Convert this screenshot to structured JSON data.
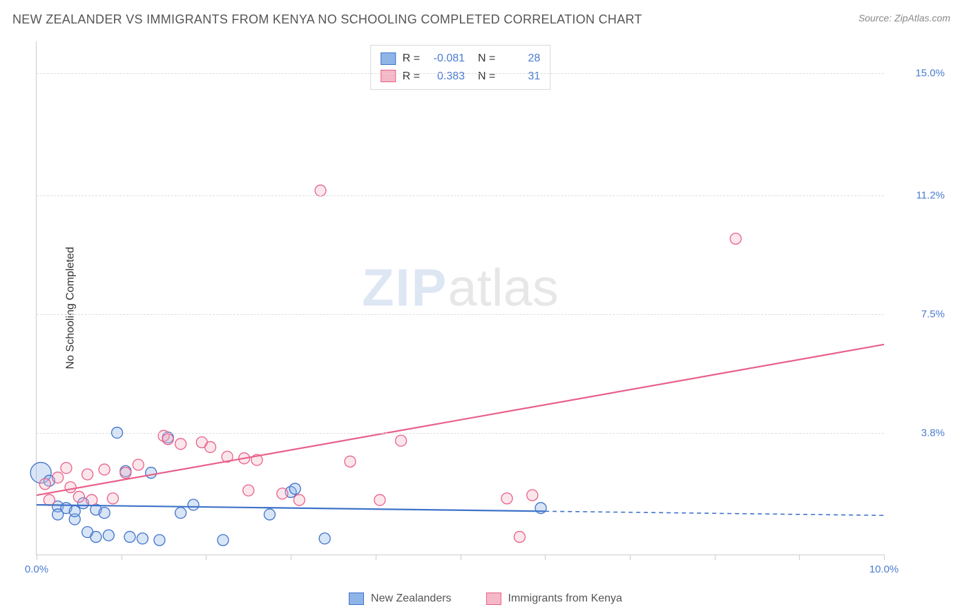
{
  "header": {
    "title": "NEW ZEALANDER VS IMMIGRANTS FROM KENYA NO SCHOOLING COMPLETED CORRELATION CHART",
    "source_prefix": "Source: ",
    "source_name": "ZipAtlas.com"
  },
  "watermark": {
    "left": "ZIP",
    "right": "atlas"
  },
  "chart": {
    "type": "scatter-correlation",
    "background_color": "#ffffff",
    "grid_color": "#dddddd",
    "axis_color": "#cccccc",
    "tick_label_color": "#4a7bd0",
    "yaxis_title": "No Schooling Completed",
    "xlim": [
      0,
      10
    ],
    "ylim": [
      0,
      16
    ],
    "yticks": [
      {
        "value": 3.8,
        "label": "3.8%"
      },
      {
        "value": 7.5,
        "label": "7.5%"
      },
      {
        "value": 11.2,
        "label": "11.2%"
      },
      {
        "value": 15.0,
        "label": "15.0%"
      }
    ],
    "xticks_minor": [
      0,
      1,
      2,
      3,
      4,
      5,
      6,
      7,
      8,
      9,
      10
    ],
    "xticks_labeled": [
      {
        "value": 0,
        "label": "0.0%"
      },
      {
        "value": 10,
        "label": "10.0%"
      }
    ],
    "series": [
      {
        "id": "nz",
        "name": "New Zealanders",
        "color_fill": "#8fb4e8",
        "color_stroke": "#3e72c9",
        "marker_radius": 8,
        "R": "-0.081",
        "N": "28",
        "trend": {
          "x1": 0,
          "y1": 1.55,
          "x2": 6.0,
          "y2": 1.35,
          "dash_to_x": 10,
          "dash_to_y": 1.22
        },
        "points": [
          {
            "x": 0.05,
            "y": 2.55,
            "r": 15
          },
          {
            "x": 0.15,
            "y": 2.3
          },
          {
            "x": 0.25,
            "y": 1.5
          },
          {
            "x": 0.25,
            "y": 1.25
          },
          {
            "x": 0.35,
            "y": 1.45
          },
          {
            "x": 0.45,
            "y": 1.1
          },
          {
            "x": 0.45,
            "y": 1.35
          },
          {
            "x": 0.55,
            "y": 1.6
          },
          {
            "x": 0.6,
            "y": 0.7
          },
          {
            "x": 0.7,
            "y": 1.4
          },
          {
            "x": 0.7,
            "y": 0.55
          },
          {
            "x": 0.85,
            "y": 0.6
          },
          {
            "x": 0.8,
            "y": 1.3
          },
          {
            "x": 0.95,
            "y": 3.8
          },
          {
            "x": 1.05,
            "y": 2.6
          },
          {
            "x": 1.1,
            "y": 0.55
          },
          {
            "x": 1.25,
            "y": 0.5
          },
          {
            "x": 1.35,
            "y": 2.55
          },
          {
            "x": 1.45,
            "y": 0.45
          },
          {
            "x": 1.55,
            "y": 3.65
          },
          {
            "x": 1.7,
            "y": 1.3
          },
          {
            "x": 1.85,
            "y": 1.55
          },
          {
            "x": 2.2,
            "y": 0.45
          },
          {
            "x": 2.75,
            "y": 1.25
          },
          {
            "x": 3.0,
            "y": 1.95
          },
          {
            "x": 3.05,
            "y": 2.05
          },
          {
            "x": 3.4,
            "y": 0.5
          },
          {
            "x": 5.95,
            "y": 1.45
          }
        ]
      },
      {
        "id": "kenya",
        "name": "Immigrants from Kenya",
        "color_fill": "#f4b8c7",
        "color_stroke": "#e85f89",
        "marker_radius": 8,
        "R": "0.383",
        "N": "31",
        "trend": {
          "x1": 0,
          "y1": 1.85,
          "x2": 10,
          "y2": 6.55
        },
        "points": [
          {
            "x": 0.1,
            "y": 2.2
          },
          {
            "x": 0.15,
            "y": 1.7
          },
          {
            "x": 0.25,
            "y": 2.4
          },
          {
            "x": 0.35,
            "y": 2.7
          },
          {
            "x": 0.4,
            "y": 2.1
          },
          {
            "x": 0.5,
            "y": 1.8
          },
          {
            "x": 0.6,
            "y": 2.5
          },
          {
            "x": 0.65,
            "y": 1.7
          },
          {
            "x": 0.8,
            "y": 2.65
          },
          {
            "x": 0.9,
            "y": 1.75
          },
          {
            "x": 1.05,
            "y": 2.55
          },
          {
            "x": 1.2,
            "y": 2.8
          },
          {
            "x": 1.5,
            "y": 3.7
          },
          {
            "x": 1.55,
            "y": 3.6
          },
          {
            "x": 1.7,
            "y": 3.45
          },
          {
            "x": 1.95,
            "y": 3.5
          },
          {
            "x": 2.05,
            "y": 3.35
          },
          {
            "x": 2.25,
            "y": 3.05
          },
          {
            "x": 2.45,
            "y": 3.0
          },
          {
            "x": 2.5,
            "y": 2.0
          },
          {
            "x": 2.6,
            "y": 2.95
          },
          {
            "x": 2.9,
            "y": 1.9
          },
          {
            "x": 3.1,
            "y": 1.7
          },
          {
            "x": 3.35,
            "y": 11.35
          },
          {
            "x": 3.7,
            "y": 2.9
          },
          {
            "x": 4.05,
            "y": 1.7
          },
          {
            "x": 4.3,
            "y": 3.55
          },
          {
            "x": 5.55,
            "y": 1.75
          },
          {
            "x": 5.7,
            "y": 0.55
          },
          {
            "x": 5.85,
            "y": 1.85
          },
          {
            "x": 8.25,
            "y": 9.85
          }
        ]
      }
    ]
  },
  "legend": {
    "series1": "New Zealanders",
    "series2": "Immigrants from Kenya"
  }
}
